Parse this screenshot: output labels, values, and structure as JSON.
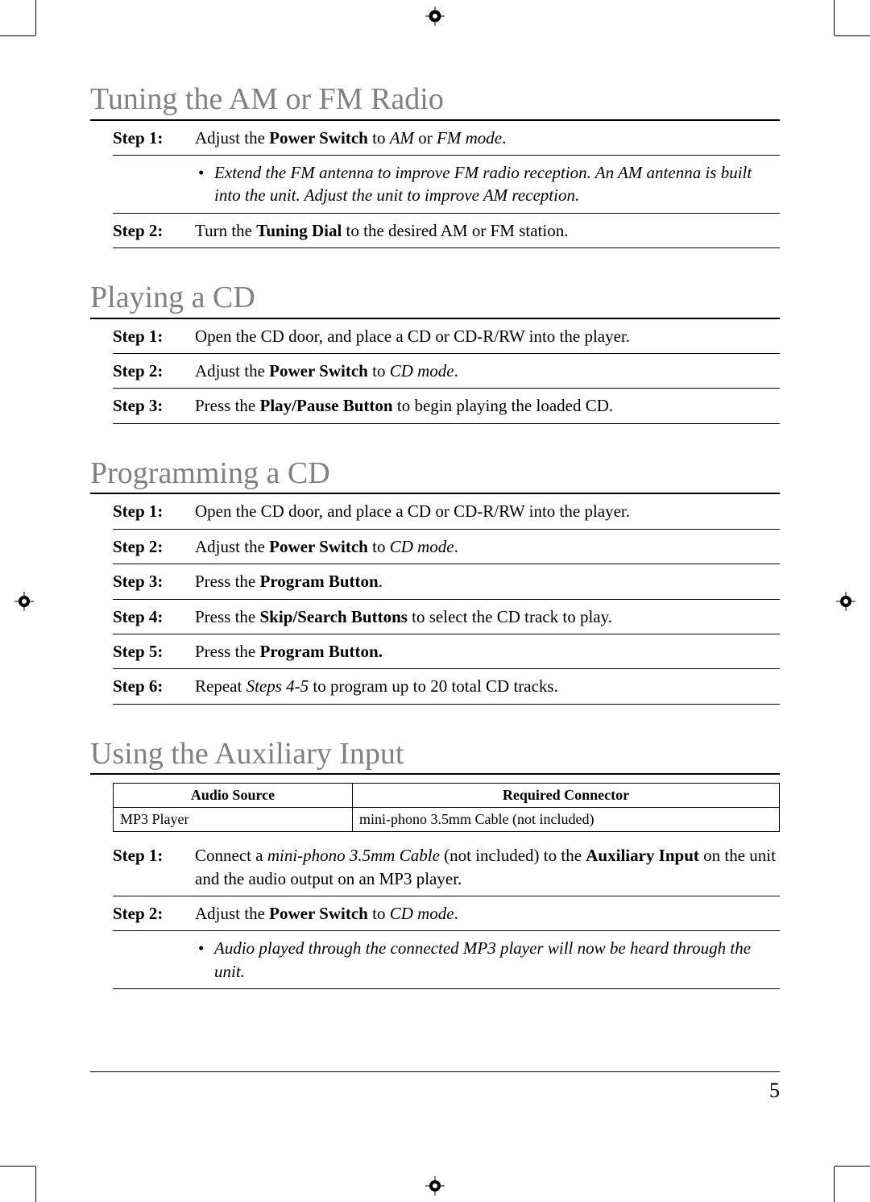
{
  "page_number": "5",
  "sections": [
    {
      "title": "Tuning the AM or FM Radio",
      "rows": [
        {
          "kind": "step",
          "label": "Step 1:",
          "html": "Adjust the <span class=\"bold\">Power Switch</span> to <span class=\"ital\">AM</span> or <span class=\"ital\">FM mode</span>."
        },
        {
          "kind": "note",
          "html": "Extend the FM antenna to improve FM radio reception. An AM antenna is built into the unit. Adjust the unit to improve AM reception."
        },
        {
          "kind": "step",
          "label": "Step 2:",
          "html": "Turn the <span class=\"bold\">Tuning Dial</span> to the desired AM or FM station."
        }
      ]
    },
    {
      "title": "Playing a CD",
      "rows": [
        {
          "kind": "step",
          "label": "Step 1:",
          "html": "Open the CD door, and place a CD or CD-R/RW into the player."
        },
        {
          "kind": "step",
          "label": "Step 2:",
          "html": "Adjust the <span class=\"bold\">Power Switch</span> to <span class=\"ital\">CD mode</span>."
        },
        {
          "kind": "step",
          "label": "Step 3:",
          "html": "Press the <span class=\"bold\">Play/Pause Button</span> to begin playing the loaded CD."
        }
      ]
    },
    {
      "title": "Programming a CD",
      "rows": [
        {
          "kind": "step",
          "label": "Step 1:",
          "html": "Open the CD door, and place a CD or CD-R/RW into the player."
        },
        {
          "kind": "step",
          "label": "Step 2:",
          "html": "Adjust the <span class=\"bold\">Power Switch</span> to <span class=\"ital\">CD mode</span>."
        },
        {
          "kind": "step",
          "label": "Step 3:",
          "html": "Press the <span class=\"bold\">Program Button</span>."
        },
        {
          "kind": "step",
          "label": "Step 4:",
          "html": "Press the <span class=\"bold\">Skip/Search Buttons</span> to select the CD track to play."
        },
        {
          "kind": "step",
          "label": "Step 5:",
          "html": "Press the <span class=\"bold\">Program Button.</span>"
        },
        {
          "kind": "step",
          "label": "Step 6:",
          "html": "Repeat <span class=\"ital\">Steps 4-5</span> to program up to 20 total CD tracks."
        }
      ]
    },
    {
      "title": "Using the Auxiliary Input",
      "table": {
        "headers": [
          "Audio Source",
          "Required Connector"
        ],
        "row": [
          "MP3 Player",
          "mini-phono 3.5mm Cable (not included)"
        ],
        "col0_width": 280
      },
      "rows": [
        {
          "kind": "step",
          "label": "Step 1:",
          "html": "Connect a <span class=\"ital\">mini-phono 3.5mm Cable</span> (not included) to the <span class=\"bold\">Auxiliary Input</span> on the unit and the audio output on an MP3 player."
        },
        {
          "kind": "step",
          "label": "Step 2:",
          "html": "Adjust the <span class=\"bold\">Power Switch</span> to <span class=\"ital\">CD mode</span>."
        },
        {
          "kind": "note",
          "html": "Audio played through the connected MP3 player will now be heard through the unit."
        }
      ]
    }
  ]
}
